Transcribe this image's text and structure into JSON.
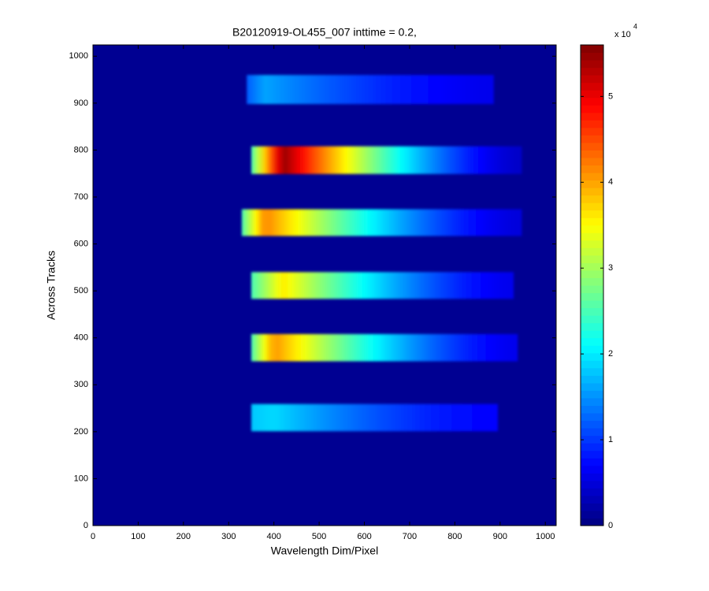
{
  "chart_data": {
    "type": "heatmap",
    "title": "B20120919-OL455_007 inttime = 0.2,",
    "x_label": "Wavelength Dim/Pixel",
    "y_label": "Across Tracks",
    "xlim": [
      0,
      1024
    ],
    "ylim": [
      0,
      1024
    ],
    "xticks": [
      0,
      100,
      200,
      300,
      400,
      500,
      600,
      700,
      800,
      900,
      1000
    ],
    "yticks": [
      0,
      100,
      200,
      300,
      400,
      500,
      600,
      700,
      800,
      900,
      1000
    ],
    "colormap": "jet",
    "clim": [
      0,
      56000
    ],
    "background": 1000,
    "colorbar_ticks": [
      {
        "value": 0,
        "label": "0"
      },
      {
        "value": 10000,
        "label": "1"
      },
      {
        "value": 20000,
        "label": "2"
      },
      {
        "value": 30000,
        "label": "3"
      },
      {
        "value": 40000,
        "label": "4"
      },
      {
        "value": 50000,
        "label": "5"
      }
    ],
    "colorbar_multiplier": "x 10",
    "colorbar_exponent": "4",
    "stripes": [
      {
        "x": [
          340,
          886
        ],
        "y": [
          898,
          960
        ],
        "start": 12000,
        "peak": 16000,
        "peak_x": 380,
        "end": 6000
      },
      {
        "x": [
          350,
          948
        ],
        "y": [
          749,
          808
        ],
        "start": 25000,
        "peak": 55000,
        "peak_x": 420,
        "end": 4000
      },
      {
        "x": [
          329,
          948
        ],
        "y": [
          617,
          674
        ],
        "start": 25000,
        "peak": 42000,
        "peak_x": 380,
        "end": 5000
      },
      {
        "x": [
          350,
          930
        ],
        "y": [
          483,
          540
        ],
        "start": 25000,
        "peak": 36000,
        "peak_x": 420,
        "end": 6000
      },
      {
        "x": [
          350,
          939
        ],
        "y": [
          350,
          408
        ],
        "start": 25000,
        "peak": 41000,
        "peak_x": 400,
        "end": 6000
      },
      {
        "x": [
          350,
          895
        ],
        "y": [
          201,
          259
        ],
        "start": 18000,
        "peak": 19000,
        "peak_x": 400,
        "end": 7000
      }
    ]
  }
}
